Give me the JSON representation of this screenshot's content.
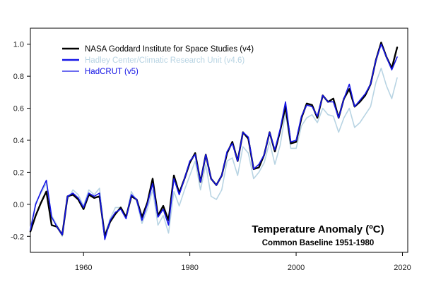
{
  "chart_data": {
    "type": "line",
    "title": "",
    "xlabel": "",
    "ylabel": "",
    "xlim": [
      1950,
      2021
    ],
    "ylim": [
      -0.3,
      1.1
    ],
    "xticks": [
      1960,
      1980,
      2000,
      2020
    ],
    "yticks": [
      -0.2,
      0.0,
      0.2,
      0.4,
      0.6,
      0.8,
      1.0
    ],
    "grid": false,
    "legend_position": "top-left",
    "x": [
      1950,
      1951,
      1952,
      1953,
      1954,
      1955,
      1956,
      1957,
      1958,
      1959,
      1960,
      1961,
      1962,
      1963,
      1964,
      1965,
      1966,
      1967,
      1968,
      1969,
      1970,
      1971,
      1972,
      1973,
      1974,
      1975,
      1976,
      1977,
      1978,
      1979,
      1980,
      1981,
      1982,
      1983,
      1984,
      1985,
      1986,
      1987,
      1988,
      1989,
      1990,
      1991,
      1992,
      1993,
      1994,
      1995,
      1996,
      1997,
      1998,
      1999,
      2000,
      2001,
      2002,
      2003,
      2004,
      2005,
      2006,
      2007,
      2008,
      2009,
      2010,
      2011,
      2012,
      2013,
      2014,
      2015,
      2016,
      2017,
      2018,
      2019
    ],
    "series": [
      {
        "name": "NASA Goddard Institute for Space Studies (v4)",
        "color": "#000000",
        "width": 2.4,
        "values": [
          -0.17,
          -0.07,
          0.01,
          0.08,
          -0.13,
          -0.14,
          -0.19,
          0.05,
          0.06,
          0.03,
          -0.03,
          0.06,
          0.04,
          0.05,
          -0.2,
          -0.11,
          -0.06,
          -0.02,
          -0.08,
          0.05,
          0.03,
          -0.08,
          0.01,
          0.16,
          -0.07,
          -0.01,
          -0.1,
          0.18,
          0.07,
          0.16,
          0.26,
          0.32,
          0.14,
          0.31,
          0.16,
          0.12,
          0.18,
          0.32,
          0.39,
          0.27,
          0.45,
          0.41,
          0.22,
          0.23,
          0.31,
          0.45,
          0.33,
          0.46,
          0.61,
          0.38,
          0.39,
          0.54,
          0.63,
          0.62,
          0.54,
          0.68,
          0.64,
          0.66,
          0.54,
          0.66,
          0.72,
          0.61,
          0.64,
          0.68,
          0.75,
          0.9,
          1.01,
          0.92,
          0.85,
          0.98
        ]
      },
      {
        "name": "Hadley Center/Climatic Research Unit (v4.6)",
        "color": "#b8d4e3",
        "width": 1.6,
        "values": [
          -0.15,
          0.01,
          0.07,
          0.13,
          -0.07,
          -0.13,
          -0.2,
          0.03,
          0.09,
          0.06,
          -0.01,
          0.09,
          0.06,
          0.1,
          -0.19,
          -0.09,
          -0.02,
          -0.02,
          -0.08,
          0.08,
          0.02,
          -0.12,
          -0.03,
          0.09,
          -0.13,
          -0.07,
          -0.18,
          0.08,
          -0.01,
          0.09,
          0.18,
          0.27,
          0.09,
          0.25,
          0.05,
          0.03,
          0.09,
          0.27,
          0.29,
          0.18,
          0.36,
          0.32,
          0.16,
          0.2,
          0.26,
          0.39,
          0.25,
          0.37,
          0.57,
          0.35,
          0.35,
          0.49,
          0.54,
          0.56,
          0.51,
          0.6,
          0.56,
          0.55,
          0.45,
          0.54,
          0.6,
          0.48,
          0.51,
          0.56,
          0.61,
          0.76,
          0.85,
          0.74,
          0.66,
          0.79
        ]
      },
      {
        "name": "HadCRUT (v5)",
        "color": "#1414e6",
        "width": 1.6,
        "values": [
          -0.16,
          0.0,
          0.08,
          0.15,
          -0.08,
          -0.14,
          -0.19,
          0.05,
          0.07,
          0.04,
          -0.02,
          0.07,
          0.05,
          0.07,
          -0.22,
          -0.1,
          -0.05,
          -0.03,
          -0.09,
          0.06,
          0.03,
          -0.1,
          0.0,
          0.13,
          -0.08,
          -0.03,
          -0.13,
          0.16,
          0.06,
          0.16,
          0.27,
          0.31,
          0.14,
          0.31,
          0.16,
          0.12,
          0.18,
          0.33,
          0.38,
          0.27,
          0.45,
          0.42,
          0.22,
          0.25,
          0.31,
          0.45,
          0.34,
          0.47,
          0.64,
          0.39,
          0.4,
          0.55,
          0.62,
          0.61,
          0.55,
          0.68,
          0.64,
          0.64,
          0.54,
          0.66,
          0.75,
          0.61,
          0.65,
          0.69,
          0.75,
          0.9,
          1.0,
          0.92,
          0.84,
          0.92
        ]
      }
    ],
    "legend_entries": [
      {
        "label": "NASA Goddard Institute for Space Studies (v4)",
        "color": "#000000",
        "text_color": "#000000",
        "width": 2.4
      },
      {
        "label": "Hadley Center/Climatic Research Unit (v4.6)",
        "color": "#1414e6",
        "text_color": "#b8d4e3",
        "width": 2.4
      },
      {
        "label": "HadCRUT (v5)",
        "color": "#1414e6",
        "text_color": "#1414e6",
        "width": 1.2
      }
    ],
    "annotation": {
      "title": "Temperature Anomaly (ºC)",
      "subtitle": "Common Baseline 1951-1980"
    },
    "draw_order": [
      1,
      0,
      2
    ]
  }
}
